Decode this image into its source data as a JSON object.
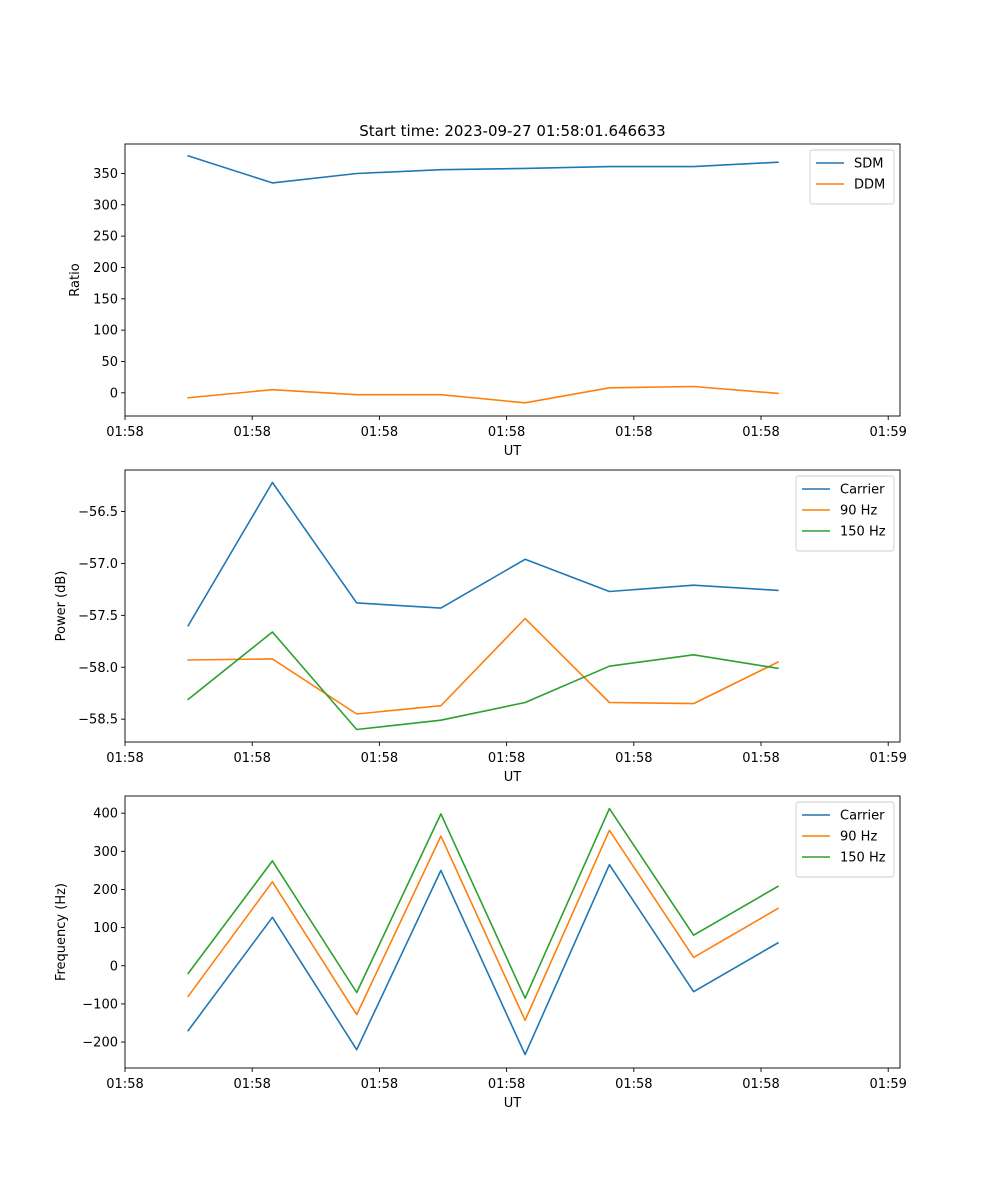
{
  "chart_data": [
    {
      "type": "line",
      "title": "Start time: 2023-09-27 01:58:01.646633",
      "xlabel": "UT",
      "ylabel": "Ratio",
      "x": [
        0,
        1,
        2,
        3,
        4,
        5,
        6,
        7
      ],
      "xlim": [
        -0.75,
        8.45
      ],
      "xticks": [
        -0.75,
        0.76,
        2.27,
        3.78,
        5.29,
        6.8,
        8.31
      ],
      "xticklabels": [
        "01:58",
        "01:58",
        "01:58",
        "01:58",
        "01:58",
        "01:58",
        "01:59"
      ],
      "ylim": [
        -37,
        397
      ],
      "yticks": [
        0,
        50,
        100,
        150,
        200,
        250,
        300,
        350
      ],
      "yticklabels": [
        "0",
        "50",
        "100",
        "150",
        "200",
        "250",
        "300",
        "350"
      ],
      "legend_position": "upper right",
      "series": [
        {
          "name": "SDM",
          "color": "#1f77b4",
          "values": [
            378,
            335,
            350,
            356,
            358,
            361,
            361,
            368
          ]
        },
        {
          "name": "DDM",
          "color": "#ff7f0e",
          "values": [
            -8,
            5,
            -3,
            -3,
            -16,
            8,
            10,
            -1
          ]
        }
      ]
    },
    {
      "type": "line",
      "title": "",
      "xlabel": "UT",
      "ylabel": "Power (dB)",
      "x": [
        0,
        1,
        2,
        3,
        4,
        5,
        6,
        7
      ],
      "xlim": [
        -0.75,
        8.45
      ],
      "xticks": [
        -0.75,
        0.76,
        2.27,
        3.78,
        5.29,
        6.8,
        8.31
      ],
      "xticklabels": [
        "01:58",
        "01:58",
        "01:58",
        "01:58",
        "01:58",
        "01:58",
        "01:59"
      ],
      "ylim": [
        -58.72,
        -56.1
      ],
      "yticks": [
        -58.5,
        -58.0,
        -57.5,
        -57.0,
        -56.5
      ],
      "yticklabels": [
        "−58.5",
        "−58.0",
        "−57.5",
        "−57.0",
        "−56.5"
      ],
      "legend_position": "upper right",
      "series": [
        {
          "name": "Carrier",
          "color": "#1f77b4",
          "values": [
            -57.6,
            -56.22,
            -57.38,
            -57.43,
            -56.96,
            -57.27,
            -57.21,
            -57.26
          ]
        },
        {
          "name": "90 Hz",
          "color": "#ff7f0e",
          "values": [
            -57.93,
            -57.92,
            -58.45,
            -58.37,
            -57.53,
            -58.34,
            -58.35,
            -57.95
          ]
        },
        {
          "name": "150 Hz",
          "color": "#2ca02c",
          "values": [
            -58.31,
            -57.66,
            -58.6,
            -58.51,
            -58.34,
            -57.99,
            -57.88,
            -58.01
          ]
        }
      ]
    },
    {
      "type": "line",
      "title": "",
      "xlabel": "UT",
      "ylabel": "Frequency (Hz)",
      "x": [
        0,
        1,
        2,
        3,
        4,
        5,
        6,
        7
      ],
      "xlim": [
        -0.75,
        8.45
      ],
      "xticks": [
        -0.75,
        0.76,
        2.27,
        3.78,
        5.29,
        6.8,
        8.31
      ],
      "xticklabels": [
        "01:58",
        "01:58",
        "01:58",
        "01:58",
        "01:58",
        "01:58",
        "01:59"
      ],
      "ylim": [
        -268,
        445
      ],
      "yticks": [
        -200,
        -100,
        0,
        100,
        200,
        300,
        400
      ],
      "yticklabels": [
        "−200",
        "−100",
        "0",
        "100",
        "200",
        "300",
        "400"
      ],
      "legend_position": "upper right",
      "series": [
        {
          "name": "Carrier",
          "color": "#1f77b4",
          "values": [
            -170,
            127,
            -220,
            250,
            -233,
            265,
            -68,
            60
          ]
        },
        {
          "name": "90 Hz",
          "color": "#ff7f0e",
          "values": [
            -80,
            220,
            -128,
            340,
            -143,
            355,
            22,
            150
          ]
        },
        {
          "name": "150 Hz",
          "color": "#2ca02c",
          "values": [
            -20,
            275,
            -70,
            398,
            -85,
            412,
            80,
            208
          ]
        }
      ]
    }
  ]
}
